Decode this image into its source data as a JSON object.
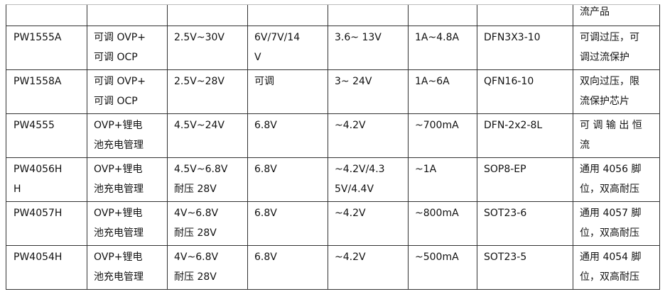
{
  "table": {
    "rows": [
      [
        [],
        [],
        [],
        [],
        [],
        [],
        [],
        [
          "流产品"
        ]
      ],
      [
        [
          "PW1555A"
        ],
        [
          "可调 OVP+",
          "可调 OCP"
        ],
        [
          "2.5V~30V"
        ],
        [
          "6V/7V/14",
          "V"
        ],
        [
          "3.6~ 13V"
        ],
        [
          "1A~4.8A"
        ],
        [
          "DFN3X3-10"
        ],
        [
          "可调过压，可",
          "调过流保护"
        ]
      ],
      [
        [
          "PW1558A"
        ],
        [
          "可调 OVP+",
          "可调 OCP"
        ],
        [
          "2.5V~28V"
        ],
        [
          "可调"
        ],
        [
          "3~ 24V"
        ],
        [
          "1A~6A"
        ],
        [
          "QFN16-10"
        ],
        [
          "双向过压，限",
          "流保护芯片"
        ]
      ],
      [
        [
          "PW4555"
        ],
        [
          "OVP+锂电",
          "池充电管理"
        ],
        [
          "4.5V~24V"
        ],
        [
          "6.8V"
        ],
        [
          "~4.2V"
        ],
        [
          "~700mA"
        ],
        [
          "DFN-2x2-8L"
        ],
        [
          "可 调 输 出 恒",
          "流"
        ]
      ],
      [
        [
          "PW4056H",
          "H"
        ],
        [
          "OVP+锂电",
          "池充电管理"
        ],
        [
          "4.5V~6.8V",
          "耐压 28V"
        ],
        [
          "6.8V"
        ],
        [
          "~4.2V/4.3",
          "5V/4.4V"
        ],
        [
          "~1A"
        ],
        [
          "SOP8-EP"
        ],
        [
          "通用 4056 脚",
          "位，双高耐压"
        ]
      ],
      [
        [
          "PW4057H"
        ],
        [
          "OVP+锂电",
          "池充电管理"
        ],
        [
          "4V~6.8V",
          "耐压 28V"
        ],
        [
          "6.8V"
        ],
        [
          "~4.2V"
        ],
        [
          "~800mA"
        ],
        [
          "SOT23-6"
        ],
        [
          "通用 4057 脚",
          "位，双高耐压"
        ]
      ],
      [
        [
          "PW4054H"
        ],
        [
          "OVP+锂电",
          "池充电管理"
        ],
        [
          "4V~6.8V",
          "耐压 28V"
        ],
        [
          "6.8V"
        ],
        [
          "~4.2V"
        ],
        [
          "~500mA"
        ],
        [
          "SOT23-5"
        ],
        [
          "通用 4054 脚",
          "位，双高耐压"
        ]
      ]
    ]
  }
}
